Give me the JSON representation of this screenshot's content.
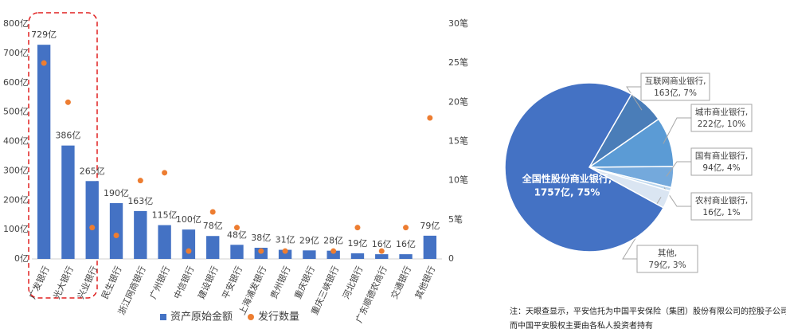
{
  "chart_data": [
    {
      "type": "bar",
      "categories": [
        "广发银行",
        "光大银行",
        "兴业银行",
        "民生银行",
        "浙江网商银行",
        "广州银行",
        "中信银行",
        "建设银行",
        "平安银行",
        "上海浦发银行",
        "贵州银行",
        "重庆银行",
        "重庆三峡银行",
        "河北银行",
        "广东顺德农商行",
        "交通银行",
        "其他银行"
      ],
      "series": [
        {
          "name": "资产原始金额",
          "color": "#4472c4",
          "type": "bar",
          "values": [
            729,
            386,
            265,
            190,
            163,
            115,
            100,
            78,
            48,
            38,
            31,
            29,
            28,
            19,
            16,
            16,
            79
          ],
          "value_labels": [
            "729亿",
            "386亿",
            "265亿",
            "190亿",
            "163亿",
            "115亿",
            "100亿",
            "78亿",
            "48亿",
            "38亿",
            "31亿",
            "29亿",
            "28亿",
            "19亿",
            "16亿",
            "16亿",
            "79亿"
          ]
        },
        {
          "name": "发行数量",
          "color": "#ed7d31",
          "type": "scatter",
          "axis": "y2",
          "values": [
            25,
            20,
            4,
            3,
            10,
            11,
            1,
            6,
            4,
            1,
            1,
            null,
            1,
            4,
            1,
            4,
            18
          ]
        }
      ],
      "ylim": [
        0,
        800
      ],
      "yticks": [
        {
          "value": 0,
          "label": "0亿"
        },
        {
          "value": 100,
          "label": "100亿"
        },
        {
          "value": 200,
          "label": "200亿"
        },
        {
          "value": 300,
          "label": "300亿"
        },
        {
          "value": 400,
          "label": "400亿"
        },
        {
          "value": 500,
          "label": "500亿"
        },
        {
          "value": 600,
          "label": "600亿"
        },
        {
          "value": 700,
          "label": "700亿"
        },
        {
          "value": 800,
          "label": "800亿"
        }
      ],
      "y2lim": [
        0,
        30
      ],
      "y2ticks": [
        0,
        {
          "value": 5,
          "label": "5笔"
        },
        {
          "value": 10,
          "label": "10笔"
        },
        {
          "value": 15,
          "label": "15笔"
        },
        {
          "value": 20,
          "label": "20笔"
        },
        {
          "value": 25,
          "label": "25笔"
        },
        {
          "value": 30,
          "label": "30笔"
        }
      ],
      "legend": "bottom"
    },
    {
      "type": "pie",
      "categories": [
        "互联网商业银行,",
        "城市商业银行,",
        "国有商业银行,",
        "农村商业银行,",
        "其他,",
        "全国性股份商业银行,"
      ],
      "values": [
        163,
        222,
        94,
        16,
        79,
        1757
      ],
      "value_labels": [
        "163亿, 7%",
        "222亿, 10%",
        "94亿, 4%",
        "16亿, 1%",
        "79亿, 3%",
        "1757亿, 75%"
      ],
      "colors": [
        "#4a7db8",
        "#5b9bd5",
        "#74a9dc",
        "#bdd7ee",
        "#dae5f2",
        "#4472c4"
      ]
    }
  ],
  "notes": [
    "注：天眼查显示，平安信托为中国平安保险（集团）股份有限公司的控股子公司，",
    "而中国平安股权主要由各私人投资者持有"
  ]
}
